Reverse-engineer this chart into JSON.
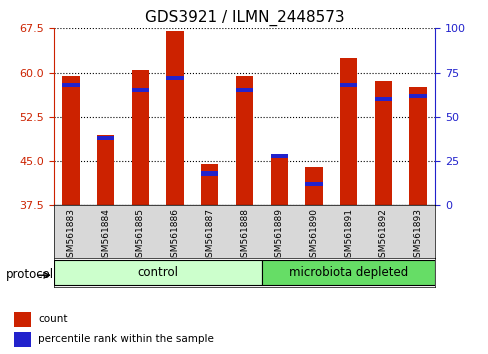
{
  "title": "GDS3921 / ILMN_2448573",
  "samples": [
    "GSM561883",
    "GSM561884",
    "GSM561885",
    "GSM561886",
    "GSM561887",
    "GSM561888",
    "GSM561889",
    "GSM561890",
    "GSM561891",
    "GSM561892",
    "GSM561893"
  ],
  "count_values": [
    59.5,
    49.5,
    60.5,
    67.0,
    44.5,
    59.5,
    45.5,
    44.0,
    62.5,
    58.5,
    57.5
  ],
  "percentile_values": [
    68,
    38,
    65,
    72,
    18,
    65,
    28,
    12,
    68,
    60,
    62
  ],
  "baseline": 37.5,
  "left_ylim": [
    37.5,
    67.5
  ],
  "left_yticks": [
    37.5,
    45.0,
    52.5,
    60.0,
    67.5
  ],
  "right_ylim": [
    0,
    100
  ],
  "right_yticks": [
    0,
    25,
    50,
    75,
    100
  ],
  "bar_color": "#cc2200",
  "blue_color": "#2222cc",
  "control_samples": 6,
  "control_label": "control",
  "treated_label": "microbiota depleted",
  "control_color": "#ccffcc",
  "treated_color": "#66dd66",
  "protocol_label": "protocol",
  "legend_count": "count",
  "legend_pct": "percentile rank within the sample",
  "title_fontsize": 11,
  "tick_fontsize": 8,
  "label_fontsize": 8.5
}
